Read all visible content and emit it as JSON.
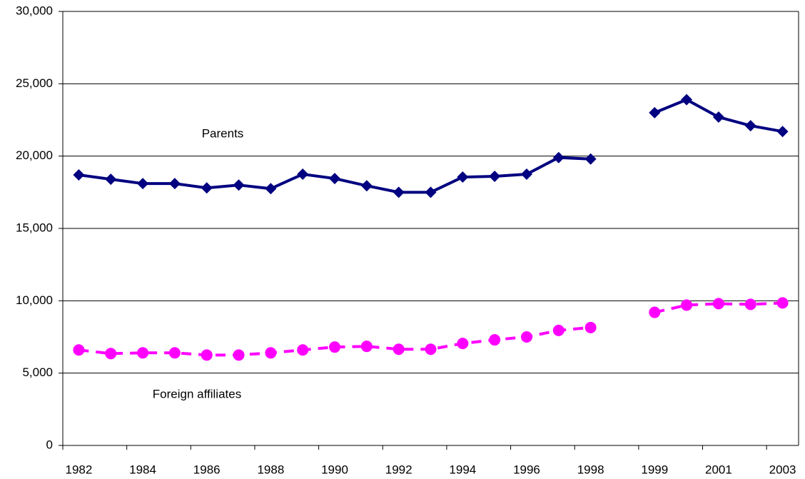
{
  "chart_data": {
    "type": "line",
    "categories": [
      "1982",
      null,
      "1984",
      null,
      "1986",
      null,
      "1988",
      null,
      "1990",
      null,
      "1992",
      null,
      "1994",
      null,
      "1996",
      null,
      "1998",
      null,
      "1999",
      null,
      "2001",
      null,
      "2003"
    ],
    "series": [
      {
        "name": "Parents",
        "color": "#000080",
        "marker": "diamond",
        "dash": false,
        "values": [
          18700,
          18400,
          18100,
          18100,
          17800,
          18000,
          17750,
          18750,
          18450,
          17950,
          17500,
          17500,
          18550,
          18600,
          18750,
          19900,
          19800,
          null,
          23000,
          23900,
          22700,
          22100,
          21700
        ]
      },
      {
        "name": "Foreign affiliates",
        "color": "#ff00ff",
        "marker": "circle",
        "dash": true,
        "values": [
          6600,
          6350,
          6400,
          6400,
          6250,
          6250,
          6400,
          6600,
          6800,
          6850,
          6650,
          6650,
          7050,
          7300,
          7500,
          7950,
          8150,
          null,
          9200,
          9700,
          9800,
          9750,
          9850
        ]
      }
    ],
    "ylim": [
      0,
      30000
    ],
    "yticks": [
      0,
      {
        "value": 5000,
        "label": "5,000"
      },
      {
        "value": 10000,
        "label": "10,000"
      },
      {
        "value": 15000,
        "label": "15,000"
      },
      {
        "value": 20000,
        "label": "20,000"
      },
      {
        "value": 25000,
        "label": "25,000"
      },
      {
        "value": 30000,
        "label": "30,000"
      }
    ],
    "grid": true
  }
}
